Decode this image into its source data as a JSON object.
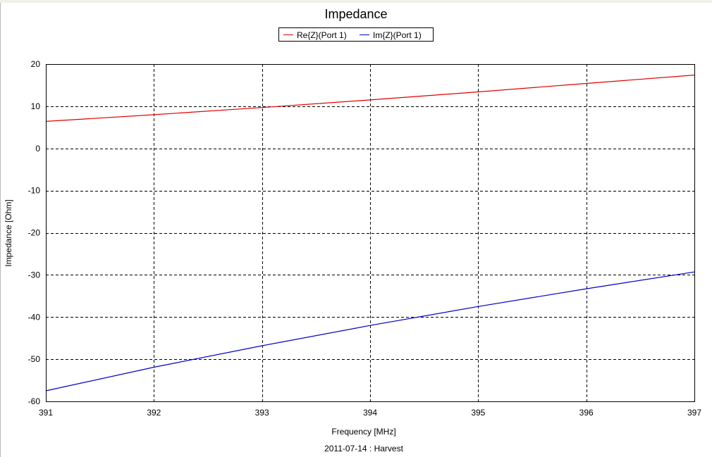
{
  "chart_data": {
    "type": "line",
    "title": "Impedance",
    "xlabel": "Frequency [MHz]",
    "ylabel": "Impedance [Ohm]",
    "footer": "2011-07-14 : Harvest",
    "xlim": [
      391,
      397
    ],
    "ylim": [
      -60,
      20
    ],
    "x_ticks": [
      391,
      392,
      393,
      394,
      395,
      396,
      397
    ],
    "y_ticks": [
      20,
      10,
      0,
      -10,
      -20,
      -30,
      -40,
      -50,
      -60
    ],
    "grid": true,
    "legend_position": "top-center",
    "x": [
      391,
      392,
      393,
      394,
      395,
      396,
      397
    ],
    "series": [
      {
        "name": "Re{Z}(Port 1)",
        "color": "#e00000",
        "values": [
          6.4,
          8.0,
          9.7,
          11.5,
          13.4,
          15.4,
          17.4
        ]
      },
      {
        "name": "Im{Z}(Port 1)",
        "color": "#0000c8",
        "values": [
          -57.5,
          -51.9,
          -46.8,
          -42.0,
          -37.5,
          -33.3,
          -29.3
        ]
      }
    ]
  }
}
